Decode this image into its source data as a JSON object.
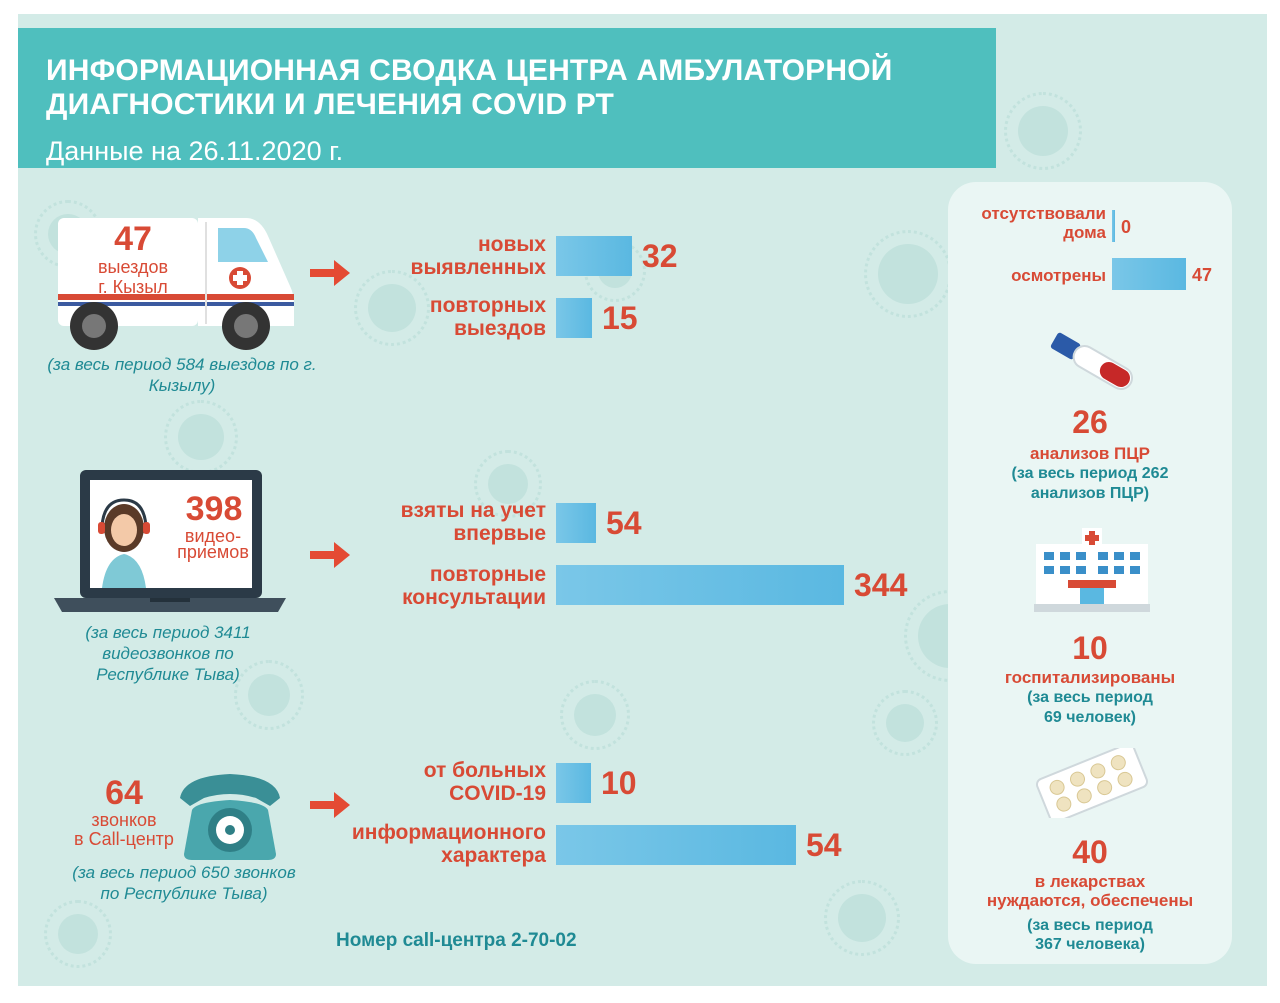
{
  "header": {
    "title": "ИНФОРМАЦИОННАЯ СВОДКА ЦЕНТРА АМБУЛАТОРНОЙ ДИАГНОСТИКИ И ЛЕЧЕНИЯ COVID РТ",
    "date": "Данные на 26.11.2020 г."
  },
  "ambulance": {
    "number": "47",
    "label_line1": "выездов",
    "label_line2": "г. Кызыл",
    "note": "(за весь период 584 выездов по г. Кызылу)"
  },
  "video": {
    "number": "398",
    "label_line1": "видео-",
    "label_line2": "приемов",
    "note": "(за весь период 3411 видеозвонков по Республике Тыва)"
  },
  "calls": {
    "number": "64",
    "label_line1": "звонков",
    "label_line2": "в Call-центр",
    "note": "(за весь период 650 звонков по Республике Тыва)"
  },
  "call_center_number": "Номер call-центра 2-70-02",
  "chart_data": [
    {
      "type": "bar",
      "orientation": "horizontal",
      "categories": [
        "новых выявленных",
        "повторных выездов"
      ],
      "values": [
        32,
        15
      ]
    },
    {
      "type": "bar",
      "orientation": "horizontal",
      "categories": [
        "взяты на учет впервые",
        "повторные консультации"
      ],
      "values": [
        54,
        344
      ]
    },
    {
      "type": "bar",
      "orientation": "horizontal",
      "categories": [
        "от больных COVID-19",
        "информационного характера"
      ],
      "values": [
        10,
        54
      ]
    },
    {
      "type": "bar",
      "orientation": "horizontal",
      "categories": [
        "отсутствовали дома",
        "осмотрены"
      ],
      "values": [
        0,
        47
      ]
    }
  ],
  "bar_labels": {
    "amb1": [
      "новых",
      "выявленных"
    ],
    "amb2": [
      "повторных",
      "выездов"
    ],
    "vid1": [
      "взяты на учет",
      "впервые"
    ],
    "vid2": [
      "повторные",
      "консультации"
    ],
    "call1": [
      "от больных",
      "COVID-19"
    ],
    "call2": [
      "информационного",
      "характера"
    ],
    "abs": [
      "отсутствовали",
      "дома"
    ],
    "exam": [
      "осмотрены"
    ]
  },
  "bar_values_text": {
    "amb1": "32",
    "amb2": "15",
    "vid1": "54",
    "vid2": "344",
    "call1": "10",
    "call2": "54",
    "abs": "0",
    "exam": "47"
  },
  "right": {
    "pcr": {
      "number": "26",
      "label": "анализов ПЦР",
      "note_line1": "(за весь период 262",
      "note_line2": "анализов ПЦР)"
    },
    "hosp": {
      "number": "10",
      "label": "госпитализированы",
      "note_line1": "(за весь период",
      "note_line2": "69 человек)"
    },
    "meds": {
      "number": "40",
      "label_line1": "в лекарствах",
      "label_line2": "нуждаются, обеспечены",
      "note_line1": "(за весь период",
      "note_line2": "367 человека)"
    }
  },
  "colors": {
    "bar": "#5ab8e1",
    "accent": "#d84a35",
    "teal": "#1f8a94",
    "header": "#4fbfbe",
    "bg": "#d3ebe7"
  }
}
